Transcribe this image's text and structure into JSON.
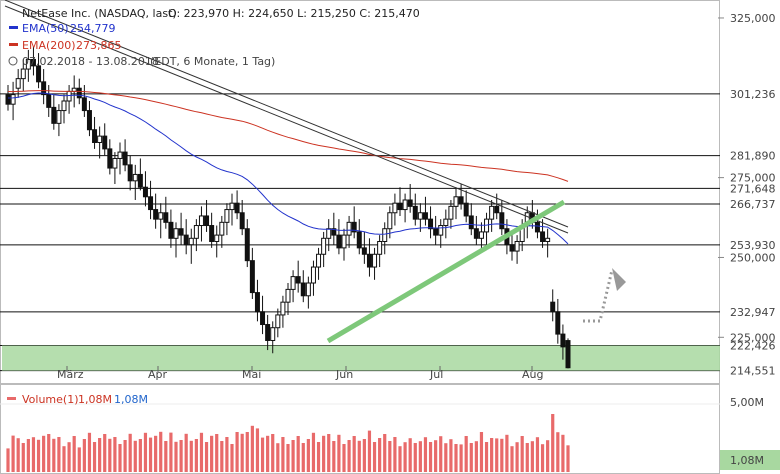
{
  "header": {
    "instrument": "NetEase Inc. (NASDAQ, last)",
    "ohlc": "O: 223,970  H: 224,650  L: 215,250  C: 215,470",
    "period": "07.02.2018 - 13.08.2018",
    "period_detail": "(EDT, 6 Monate, 1 Tag)"
  },
  "chart_data": {
    "type": "candlestick",
    "title": "NetEase Inc. (NASDAQ, last)",
    "ohlc_last": {
      "open": 223.97,
      "high": 224.65,
      "low": 215.25,
      "close": 215.47
    },
    "ylim": [
      211,
      330
    ],
    "y_ticks": [
      "325,000",
      "275,000",
      "250,000",
      "225,000"
    ],
    "x_ticks": [
      "März",
      "Apr",
      "Mai",
      "Jun",
      "Jul",
      "Aug"
    ],
    "levels": [
      {
        "value": 301.236,
        "label": "301,236"
      },
      {
        "value": 281.89,
        "label": "281,890"
      },
      {
        "value": 271.648,
        "label": "271,648"
      },
      {
        "value": 266.737,
        "label": "266,737"
      },
      {
        "value": 253.93,
        "label": "253,930"
      },
      {
        "value": 232.947,
        "label": "232,947"
      },
      {
        "value": 222.426,
        "label": "222,426"
      },
      {
        "value": 214.551,
        "label": "214,551"
      }
    ],
    "support_zone": [
      214.551,
      222.426
    ],
    "indicators": [
      {
        "name": "EMA(50)",
        "value": "254,779",
        "color": "#2233cc"
      },
      {
        "name": "EMA(200)",
        "value": "273,865",
        "color": "#cc3322"
      }
    ],
    "candles_approx": [
      [
        301,
        304,
        296,
        298
      ],
      [
        298,
        305,
        293,
        301
      ],
      [
        303,
        309,
        300,
        306
      ],
      [
        306,
        312,
        302,
        309
      ],
      [
        309,
        315,
        305,
        312
      ],
      [
        312,
        316,
        307,
        310
      ],
      [
        310,
        314,
        303,
        305
      ],
      [
        305,
        309,
        298,
        301
      ],
      [
        301,
        304,
        294,
        297
      ],
      [
        297,
        301,
        290,
        292
      ],
      [
        292,
        298,
        288,
        296
      ],
      [
        296,
        301,
        292,
        299
      ],
      [
        299,
        304,
        295,
        302
      ],
      [
        302,
        307,
        297,
        303
      ],
      [
        303,
        306,
        298,
        300
      ],
      [
        300,
        304,
        294,
        296
      ],
      [
        296,
        299,
        288,
        290
      ],
      [
        290,
        294,
        284,
        286
      ],
      [
        286,
        291,
        281,
        288
      ],
      [
        288,
        292,
        282,
        284
      ],
      [
        284,
        287,
        276,
        278
      ],
      [
        278,
        283,
        273,
        281
      ],
      [
        281,
        286,
        276,
        283
      ],
      [
        283,
        287,
        277,
        279
      ],
      [
        279,
        282,
        271,
        274
      ],
      [
        274,
        279,
        268,
        276
      ],
      [
        276,
        281,
        271,
        272
      ],
      [
        272,
        277,
        266,
        269
      ],
      [
        269,
        274,
        262,
        265
      ],
      [
        265,
        270,
        259,
        262
      ],
      [
        262,
        267,
        256,
        264
      ],
      [
        264,
        269,
        259,
        261
      ],
      [
        261,
        265,
        253,
        256
      ],
      [
        256,
        261,
        250,
        259
      ],
      [
        259,
        264,
        254,
        257
      ],
      [
        257,
        262,
        251,
        254
      ],
      [
        254,
        259,
        248,
        256
      ],
      [
        256,
        262,
        252,
        260
      ],
      [
        260,
        266,
        255,
        263
      ],
      [
        263,
        268,
        258,
        260
      ],
      [
        260,
        264,
        253,
        255
      ],
      [
        255,
        260,
        250,
        257
      ],
      [
        257,
        263,
        253,
        261
      ],
      [
        261,
        267,
        257,
        265
      ],
      [
        265,
        270,
        260,
        267
      ],
      [
        267,
        271,
        262,
        264
      ],
      [
        264,
        268,
        257,
        259
      ],
      [
        259,
        262,
        247,
        249
      ],
      [
        249,
        253,
        237,
        239
      ],
      [
        239,
        243,
        230,
        233
      ],
      [
        233,
        238,
        226,
        229
      ],
      [
        229,
        232,
        221,
        224
      ],
      [
        224,
        230,
        220,
        228
      ],
      [
        228,
        234,
        225,
        232
      ],
      [
        232,
        238,
        228,
        236
      ],
      [
        236,
        242,
        232,
        240
      ],
      [
        240,
        246,
        236,
        244
      ],
      [
        244,
        249,
        239,
        242
      ],
      [
        242,
        246,
        236,
        238
      ],
      [
        238,
        244,
        234,
        242
      ],
      [
        242,
        249,
        238,
        247
      ],
      [
        247,
        253,
        243,
        251
      ],
      [
        251,
        258,
        247,
        256
      ],
      [
        256,
        262,
        252,
        259
      ],
      [
        259,
        264,
        254,
        257
      ],
      [
        257,
        262,
        251,
        253
      ],
      [
        253,
        259,
        249,
        257
      ],
      [
        257,
        263,
        253,
        261
      ],
      [
        261,
        266,
        256,
        258
      ],
      [
        258,
        262,
        251,
        253
      ],
      [
        253,
        258,
        248,
        251
      ],
      [
        251,
        256,
        244,
        247
      ],
      [
        247,
        253,
        243,
        251
      ],
      [
        251,
        257,
        247,
        255
      ],
      [
        255,
        261,
        251,
        259
      ],
      [
        259,
        266,
        256,
        264
      ],
      [
        264,
        270,
        260,
        267
      ],
      [
        267,
        272,
        263,
        265
      ],
      [
        265,
        270,
        261,
        268
      ],
      [
        268,
        273,
        264,
        266
      ],
      [
        266,
        270,
        260,
        262
      ],
      [
        262,
        267,
        258,
        264
      ],
      [
        264,
        269,
        260,
        262
      ],
      [
        262,
        266,
        256,
        259
      ],
      [
        259,
        263,
        254,
        257
      ],
      [
        257,
        262,
        253,
        260
      ],
      [
        260,
        265,
        256,
        262
      ],
      [
        262,
        268,
        259,
        266
      ],
      [
        266,
        272,
        262,
        269
      ],
      [
        269,
        273,
        265,
        267
      ],
      [
        267,
        271,
        261,
        263
      ],
      [
        263,
        267,
        257,
        259
      ],
      [
        259,
        263,
        254,
        256
      ],
      [
        256,
        261,
        252,
        258
      ],
      [
        258,
        264,
        254,
        262
      ],
      [
        262,
        268,
        258,
        266
      ],
      [
        266,
        270,
        262,
        264
      ],
      [
        264,
        268,
        257,
        259
      ],
      [
        259,
        262,
        251,
        254
      ],
      [
        254,
        258,
        249,
        252
      ],
      [
        252,
        257,
        248,
        255
      ],
      [
        255,
        262,
        252,
        260
      ],
      [
        260,
        266,
        256,
        264
      ],
      [
        264,
        268,
        259,
        261
      ],
      [
        261,
        265,
        256,
        258
      ],
      [
        258,
        262,
        253,
        255
      ],
      [
        255,
        259,
        250,
        256
      ],
      [
        236,
        240,
        230,
        233
      ],
      [
        233,
        237,
        223,
        226
      ],
      [
        226,
        229,
        218,
        222
      ],
      [
        223.97,
        224.65,
        215.25,
        215.47
      ]
    ],
    "volume": {
      "label": "Volume(1)",
      "value": "1,08M",
      "y_tick": "5,00M",
      "last": "1,08M"
    }
  },
  "colors": {
    "up": "#ffffff",
    "down": "#111111",
    "ema50": "#2233cc",
    "ema200": "#cc3322",
    "support": "#a8d8a0",
    "trendline_green": "#7ec87a",
    "volume": "#e86a6a"
  }
}
